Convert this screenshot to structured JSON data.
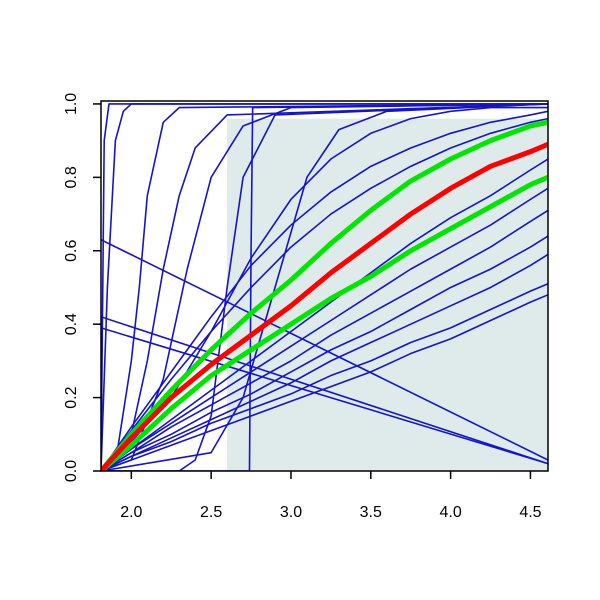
{
  "chart_data": {
    "type": "line",
    "x": [
      1.81,
      2.0,
      2.25,
      2.5,
      2.75,
      3.0,
      3.25,
      3.5,
      3.75,
      4.0,
      4.25,
      4.5,
      4.61
    ],
    "xlim": [
      1.81,
      4.61
    ],
    "ylim": [
      0,
      1.008
    ],
    "xticks": [
      {
        "value": 2.0,
        "label": "2.0"
      },
      2.5,
      {
        "value": 3.0,
        "label": "3.0"
      },
      3.5,
      {
        "value": 4.0,
        "label": "4.0"
      },
      4.5
    ],
    "yticks": [
      {
        "value": 0,
        "label": "0.0"
      },
      0.2,
      0.4,
      0.6,
      0.8,
      {
        "value": 1.0,
        "label": "1.0"
      }
    ],
    "shade": {
      "xlim": [
        2.6,
        4.61
      ],
      "ylim": [
        0,
        0.96
      ],
      "color": "#dfeaea"
    },
    "series": [
      {
        "color": "#1414cc",
        "width": 1.6,
        "x": [
          1.81,
          1.83,
          1.86,
          4.61
        ],
        "values": [
          0,
          0.9,
          1,
          1
        ]
      },
      {
        "color": "#1414cc",
        "width": 1.6,
        "x": [
          1.81,
          1.85,
          1.9,
          1.95,
          2.0,
          4.61
        ],
        "values": [
          0,
          0.5,
          0.9,
          0.98,
          1,
          1
        ]
      },
      {
        "color": "#1414cc",
        "width": 1.6,
        "x": [
          1.81,
          1.9,
          2.0,
          2.05,
          2.1,
          2.2,
          2.3,
          4.61
        ],
        "values": [
          0,
          0.02,
          0.3,
          0.5,
          0.75,
          0.95,
          0.99,
          1
        ]
      },
      {
        "color": "#1414cc",
        "width": 1.6,
        "x": [
          1.81,
          2.0,
          2.1,
          2.2,
          2.3,
          2.4,
          2.6,
          4.61
        ],
        "values": [
          0,
          0.1,
          0.3,
          0.55,
          0.75,
          0.88,
          0.97,
          1
        ]
      },
      {
        "color": "#1414cc",
        "width": 1.6,
        "x": [
          1.81,
          2.0,
          2.2,
          2.35,
          2.5,
          2.7,
          3.0,
          4.61
        ],
        "values": [
          0,
          0.03,
          0.25,
          0.55,
          0.8,
          0.94,
          0.99,
          1
        ]
      },
      {
        "color": "#1414cc",
        "width": 1.6,
        "x": [
          1.81,
          2.74,
          2.75,
          2.76,
          4.61
        ],
        "values": [
          0,
          0,
          0.6,
          0.99,
          1
        ]
      },
      {
        "color": "#1414cc",
        "width": 1.6,
        "x": [
          1.81,
          2.3,
          2.4,
          2.5,
          2.6,
          2.7,
          2.9,
          4.61
        ],
        "values": [
          0,
          0,
          0.03,
          0.15,
          0.5,
          0.8,
          0.97,
          1
        ]
      },
      {
        "color": "#1414cc",
        "width": 1.6,
        "x": [
          1.81,
          2.5,
          2.7,
          2.9,
          3.1,
          3.3,
          3.6,
          4.61
        ],
        "values": [
          0,
          0.05,
          0.2,
          0.5,
          0.8,
          0.93,
          0.98,
          1
        ]
      },
      {
        "color": "#1414cc",
        "width": 1.6,
        "values": [
          0,
          0.12,
          0.27,
          0.42,
          0.56,
          0.67,
          0.76,
          0.83,
          0.88,
          0.92,
          0.95,
          0.97,
          0.98
        ]
      },
      {
        "color": "#1414cc",
        "width": 1.6,
        "values": [
          0,
          0.08,
          0.2,
          0.38,
          0.58,
          0.74,
          0.85,
          0.92,
          0.96,
          0.98,
          0.99,
          0.99,
          0.99
        ]
      },
      {
        "color": "#1414cc",
        "width": 1.6,
        "values": [
          0,
          0.11,
          0.25,
          0.38,
          0.5,
          0.61,
          0.7,
          0.77,
          0.83,
          0.88,
          0.92,
          0.95,
          0.96
        ]
      },
      {
        "color": "#1414cc",
        "width": 1.6,
        "values": [
          0,
          0.06,
          0.14,
          0.22,
          0.3,
          0.38,
          0.46,
          0.54,
          0.62,
          0.69,
          0.75,
          0.82,
          0.85
        ]
      },
      {
        "color": "#1414cc",
        "width": 1.6,
        "values": [
          0,
          0.06,
          0.13,
          0.2,
          0.27,
          0.34,
          0.41,
          0.48,
          0.55,
          0.61,
          0.67,
          0.74,
          0.77
        ]
      },
      {
        "color": "#1414cc",
        "width": 1.6,
        "values": [
          0,
          0.05,
          0.12,
          0.18,
          0.24,
          0.3,
          0.37,
          0.43,
          0.49,
          0.55,
          0.61,
          0.68,
          0.71
        ]
      },
      {
        "color": "#1414cc",
        "width": 1.6,
        "values": [
          0,
          0.05,
          0.1,
          0.16,
          0.21,
          0.27,
          0.33,
          0.38,
          0.44,
          0.5,
          0.55,
          0.61,
          0.64
        ]
      },
      {
        "color": "#1414cc",
        "width": 1.6,
        "values": [
          0,
          0.04,
          0.09,
          0.14,
          0.19,
          0.24,
          0.3,
          0.35,
          0.4,
          0.45,
          0.5,
          0.56,
          0.59
        ]
      },
      {
        "color": "#1414cc",
        "width": 1.6,
        "values": [
          0,
          0.04,
          0.08,
          0.13,
          0.17,
          0.21,
          0.26,
          0.3,
          0.35,
          0.39,
          0.44,
          0.49,
          0.51
        ]
      },
      {
        "color": "#1414cc",
        "width": 1.6,
        "values": [
          0,
          0.03,
          0.07,
          0.11,
          0.15,
          0.19,
          0.23,
          0.27,
          0.32,
          0.36,
          0.41,
          0.46,
          0.48
        ]
      },
      {
        "color": "#1414cc",
        "width": 1.6,
        "x": [
          1.81,
          4.61
        ],
        "values": [
          0.63,
          0.03
        ]
      },
      {
        "color": "#1414cc",
        "width": 1.6,
        "x": [
          1.81,
          4.61
        ],
        "values": [
          0.42,
          0.02
        ]
      },
      {
        "color": "#1414cc",
        "width": 1.6,
        "x": [
          1.81,
          4.61
        ],
        "values": [
          0.39,
          0.02
        ]
      },
      {
        "color": "#00e600",
        "width": 5,
        "values": [
          0,
          0.1,
          0.22,
          0.33,
          0.43,
          0.52,
          0.62,
          0.71,
          0.79,
          0.85,
          0.9,
          0.94,
          0.95
        ]
      },
      {
        "color": "#00e600",
        "width": 5,
        "values": [
          0,
          0.07,
          0.17,
          0.26,
          0.33,
          0.4,
          0.47,
          0.53,
          0.6,
          0.66,
          0.72,
          0.78,
          0.8
        ]
      },
      {
        "color": "#ff0000",
        "width": 5,
        "values": [
          0,
          0.09,
          0.2,
          0.29,
          0.37,
          0.45,
          0.54,
          0.62,
          0.7,
          0.77,
          0.83,
          0.87,
          0.89
        ]
      }
    ]
  }
}
